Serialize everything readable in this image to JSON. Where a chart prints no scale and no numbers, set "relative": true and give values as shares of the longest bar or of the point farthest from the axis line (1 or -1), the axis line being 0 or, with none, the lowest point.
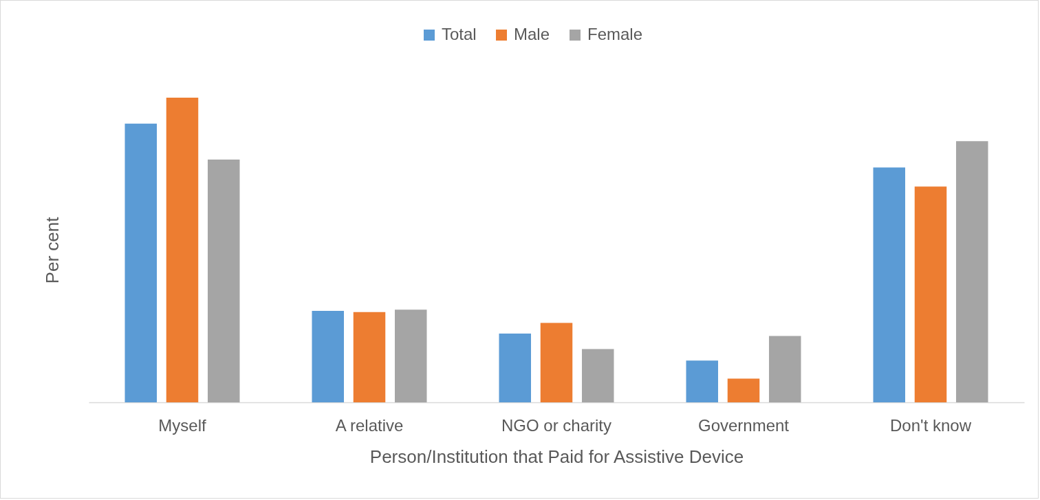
{
  "chart_data": {
    "type": "bar",
    "relative": true,
    "xlabel": "Person/Institution that Paid for Assistive Device",
    "ylabel": "Per cent",
    "categories": [
      "Myself",
      "A relative",
      "NGO or charity",
      "Government",
      "Don't know"
    ],
    "series": [
      {
        "name": "Total",
        "color": "#5b9bd5",
        "values": [
          0.915,
          0.3,
          0.226,
          0.137,
          0.771
        ]
      },
      {
        "name": "Male",
        "color": "#ed7d31",
        "values": [
          1,
          0.296,
          0.261,
          0.078,
          0.708
        ]
      },
      {
        "name": "Female",
        "color": "#a5a5a5",
        "values": [
          0.797,
          0.304,
          0.175,
          0.218,
          0.857
        ]
      }
    ],
    "legend": "top"
  }
}
